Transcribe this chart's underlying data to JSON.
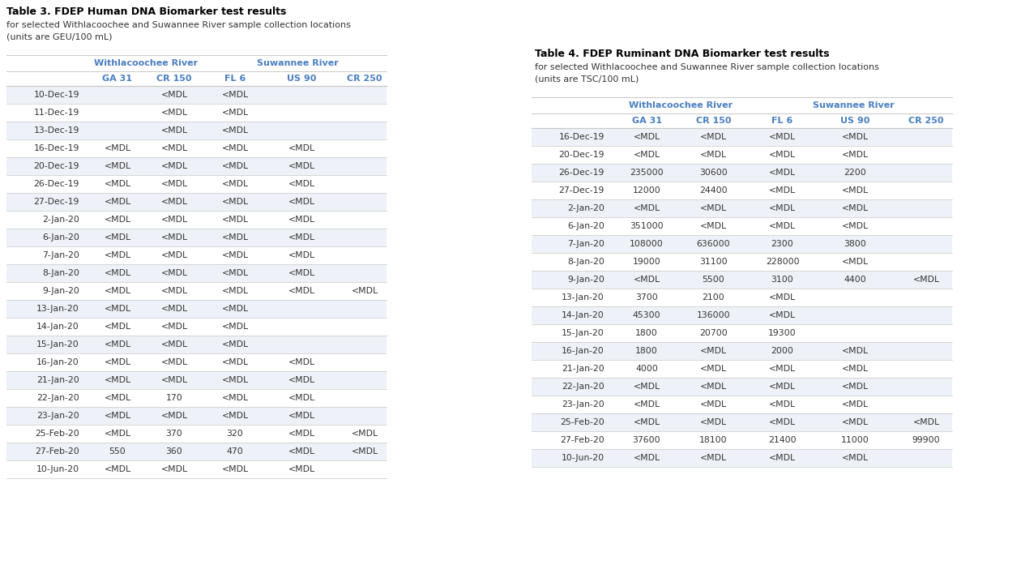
{
  "table3": {
    "title": "Table 3. FDEP Human DNA Biomarker test results",
    "subtitle1": "for selected Withlacoochee and Suwannee River sample collection locations",
    "subtitle2": "(units are GEU/100 mL)",
    "group_headers": [
      "Withlacoochee River",
      "Suwannee River"
    ],
    "col_headers": [
      "",
      "GA 31",
      "CR 150",
      "FL 6",
      "US 90",
      "CR 250"
    ],
    "rows": [
      [
        "10-Dec-19",
        "",
        "<MDL",
        "<MDL",
        "",
        ""
      ],
      [
        "11-Dec-19",
        "",
        "<MDL",
        "<MDL",
        "",
        ""
      ],
      [
        "13-Dec-19",
        "",
        "<MDL",
        "<MDL",
        "",
        ""
      ],
      [
        "16-Dec-19",
        "<MDL",
        "<MDL",
        "<MDL",
        "<MDL",
        ""
      ],
      [
        "20-Dec-19",
        "<MDL",
        "<MDL",
        "<MDL",
        "<MDL",
        ""
      ],
      [
        "26-Dec-19",
        "<MDL",
        "<MDL",
        "<MDL",
        "<MDL",
        ""
      ],
      [
        "27-Dec-19",
        "<MDL",
        "<MDL",
        "<MDL",
        "<MDL",
        ""
      ],
      [
        "2-Jan-20",
        "<MDL",
        "<MDL",
        "<MDL",
        "<MDL",
        ""
      ],
      [
        "6-Jan-20",
        "<MDL",
        "<MDL",
        "<MDL",
        "<MDL",
        ""
      ],
      [
        "7-Jan-20",
        "<MDL",
        "<MDL",
        "<MDL",
        "<MDL",
        ""
      ],
      [
        "8-Jan-20",
        "<MDL",
        "<MDL",
        "<MDL",
        "<MDL",
        ""
      ],
      [
        "9-Jan-20",
        "<MDL",
        "<MDL",
        "<MDL",
        "<MDL",
        "<MDL"
      ],
      [
        "13-Jan-20",
        "<MDL",
        "<MDL",
        "<MDL",
        "",
        ""
      ],
      [
        "14-Jan-20",
        "<MDL",
        "<MDL",
        "<MDL",
        "",
        ""
      ],
      [
        "15-Jan-20",
        "<MDL",
        "<MDL",
        "<MDL",
        "",
        ""
      ],
      [
        "16-Jan-20",
        "<MDL",
        "<MDL",
        "<MDL",
        "<MDL",
        ""
      ],
      [
        "21-Jan-20",
        "<MDL",
        "<MDL",
        "<MDL",
        "<MDL",
        ""
      ],
      [
        "22-Jan-20",
        "<MDL",
        "170",
        "<MDL",
        "<MDL",
        ""
      ],
      [
        "23-Jan-20",
        "<MDL",
        "<MDL",
        "<MDL",
        "<MDL",
        ""
      ],
      [
        "25-Feb-20",
        "<MDL",
        "370",
        "320",
        "<MDL",
        "<MDL"
      ],
      [
        "27-Feb-20",
        "550",
        "360",
        "470",
        "<MDL",
        "<MDL"
      ],
      [
        "10-Jun-20",
        "<MDL",
        "<MDL",
        "<MDL",
        "<MDL",
        ""
      ]
    ]
  },
  "table4": {
    "title": "Table 4. FDEP Ruminant DNA Biomarker test results",
    "subtitle1": "for selected Withlacoochee and Suwannee River sample collection locations",
    "subtitle2": "(units are TSC/100 mL)",
    "group_headers": [
      "Withlacoochee River",
      "Suwannee River"
    ],
    "col_headers": [
      "",
      "GA 31",
      "CR 150",
      "FL 6",
      "US 90",
      "CR 250"
    ],
    "rows": [
      [
        "16-Dec-19",
        "<MDL",
        "<MDL",
        "<MDL",
        "<MDL",
        ""
      ],
      [
        "20-Dec-19",
        "<MDL",
        "<MDL",
        "<MDL",
        "<MDL",
        ""
      ],
      [
        "26-Dec-19",
        "235000",
        "30600",
        "<MDL",
        "2200",
        ""
      ],
      [
        "27-Dec-19",
        "12000",
        "24400",
        "<MDL",
        "<MDL",
        ""
      ],
      [
        "2-Jan-20",
        "<MDL",
        "<MDL",
        "<MDL",
        "<MDL",
        ""
      ],
      [
        "6-Jan-20",
        "351000",
        "<MDL",
        "<MDL",
        "<MDL",
        ""
      ],
      [
        "7-Jan-20",
        "108000",
        "636000",
        "2300",
        "3800",
        ""
      ],
      [
        "8-Jan-20",
        "19000",
        "31100",
        "228000",
        "<MDL",
        ""
      ],
      [
        "9-Jan-20",
        "<MDL",
        "5500",
        "3100",
        "4400",
        "<MDL"
      ],
      [
        "13-Jan-20",
        "3700",
        "2100",
        "<MDL",
        "",
        ""
      ],
      [
        "14-Jan-20",
        "45300",
        "136000",
        "<MDL",
        "",
        ""
      ],
      [
        "15-Jan-20",
        "1800",
        "20700",
        "19300",
        "",
        ""
      ],
      [
        "16-Jan-20",
        "1800",
        "<MDL",
        "2000",
        "<MDL",
        ""
      ],
      [
        "21-Jan-20",
        "4000",
        "<MDL",
        "<MDL",
        "<MDL",
        ""
      ],
      [
        "22-Jan-20",
        "<MDL",
        "<MDL",
        "<MDL",
        "<MDL",
        ""
      ],
      [
        "23-Jan-20",
        "<MDL",
        "<MDL",
        "<MDL",
        "<MDL",
        ""
      ],
      [
        "25-Feb-20",
        "<MDL",
        "<MDL",
        "<MDL",
        "<MDL",
        "<MDL"
      ],
      [
        "27-Feb-20",
        "37600",
        "18100",
        "21400",
        "11000",
        "99900"
      ],
      [
        "10-Jun-20",
        "<MDL",
        "<MDL",
        "<MDL",
        "<MDL",
        ""
      ]
    ]
  },
  "bg_color": "#ffffff",
  "header_color": "#4a7fc1",
  "row_alt_color": "#eef2f8",
  "row_color": "#ffffff",
  "text_color": "#333333",
  "border_color": "#c8c8c8",
  "title_color": "#000000",
  "fig_width": 12.6,
  "fig_height": 7.02,
  "dpi": 100
}
